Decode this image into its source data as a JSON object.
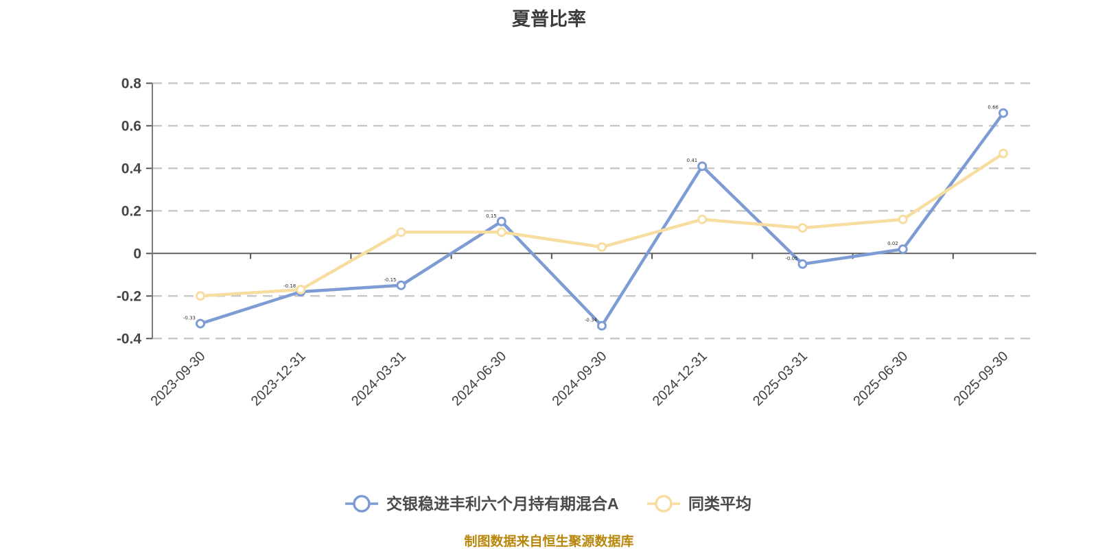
{
  "title": "夏普比率",
  "source_note": "制图数据来自恒生聚源数据库",
  "colors": {
    "background": "#ffffff",
    "title_text": "#3c3c3c",
    "axis_text": "#454545",
    "x_label_text": "#3f3f3f",
    "grid_line": "#c9c9c9",
    "zero_axis_line": "#616161",
    "y_axis_line": "#7a7a7a",
    "tick": "#555555",
    "legend_text": "#4a4a4a",
    "footer_text": "#b8860b",
    "point_label": "#111111",
    "fund_series": "#7d9cd3",
    "peer_series": "#f8dda0",
    "marker_fill": "#ffffff"
  },
  "legend": {
    "items": [
      {
        "label": "交银稳进丰利六个月持有期混合A",
        "color": "#7d9cd3"
      },
      {
        "label": "同类平均",
        "color": "#f8dda0"
      }
    ]
  },
  "chart_data": {
    "type": "line",
    "title": "夏普比率",
    "x": [
      "2023-09-30",
      "2023-12-31",
      "2024-03-31",
      "2024-06-30",
      "2024-09-30",
      "2024-12-31",
      "2025-03-31",
      "2025-06-30",
      "2025-09-30"
    ],
    "series": [
      {
        "name": "交银稳进丰利六个月持有期混合A",
        "color": "#7d9cd3",
        "values": [
          -0.33,
          -0.18,
          -0.15,
          0.15,
          -0.34,
          0.41,
          -0.05,
          0.02,
          0.66
        ],
        "marker": "circle",
        "point_labels": true
      },
      {
        "name": "同类平均",
        "color": "#f8dda0",
        "values": [
          -0.2,
          -0.17,
          0.1,
          0.1,
          0.03,
          0.16,
          0.12,
          0.16,
          0.47
        ],
        "marker": "circle",
        "point_labels": false
      }
    ],
    "ylim": [
      -0.4,
      0.8
    ],
    "yticks": [
      0.8,
      0.6,
      0.4,
      0.2,
      0,
      -0.2,
      -0.4
    ],
    "grid": "horizontal-dashed",
    "zero_axis_solid": true,
    "legend_position": "bottom",
    "x_label_rotation_deg": -45
  }
}
